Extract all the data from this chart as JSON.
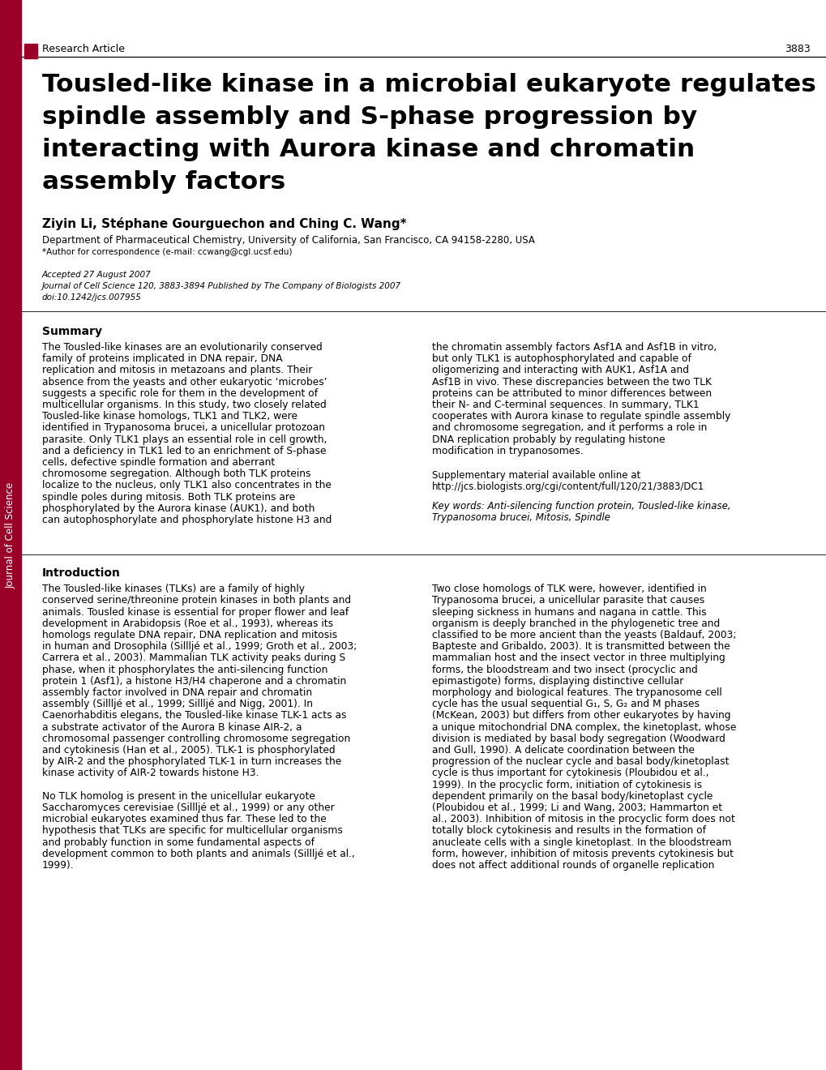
{
  "bg_color": "#ffffff",
  "sidebar_color": "#9b0028",
  "header_label": "Research Article",
  "header_page": "3883",
  "journal_sidebar": "Journal of Cell Science",
  "title_lines": [
    "Tousled-like kinase in a microbial eukaryote regulates",
    "spindle assembly and S-phase progression by",
    "interacting with Aurora kinase and chromatin",
    "assembly factors"
  ],
  "authors": "Ziyin Li, Stéphane Gourguechon and Ching C. Wang*",
  "affiliation": "Department of Pharmaceutical Chemistry, University of California, San Francisco, CA 94158-2280, USA",
  "correspondence": "*Author for correspondence (e-mail: ccwang@cgl.ucsf.edu)",
  "accepted": "Accepted 27 August 2007",
  "journal_ref": "Journal of Cell Science 120, 3883-3894 Published by The Company of Biologists 2007",
  "doi": "doi:10.1242/jcs.007955",
  "summary_title": "Summary",
  "summary_left_lines": [
    "The Tousled-like kinases are an evolutionarily conserved",
    "family of proteins implicated in DNA repair, DNA",
    "replication and mitosis in metazoans and plants. Their",
    "absence from the yeasts and other eukaryotic ‘microbes’",
    "suggests a specific role for them in the development of",
    "multicellular organisms. In this study, two closely related",
    "Tousled-like kinase homologs, TLK1 and TLK2, were",
    "identified in Trypanosoma brucei, a unicellular protozoan",
    "parasite. Only TLK1 plays an essential role in cell growth,",
    "and a deficiency in TLK1 led to an enrichment of S-phase",
    "cells, defective spindle formation and aberrant",
    "chromosome segregation. Although both TLK proteins",
    "localize to the nucleus, only TLK1 also concentrates in the",
    "spindle poles during mitosis. Both TLK proteins are",
    "phosphorylated by the Aurora kinase (AUK1), and both",
    "can autophosphorylate and phosphorylate histone H3 and"
  ],
  "summary_right_lines": [
    "the chromatin assembly factors Asf1A and Asf1B in vitro,",
    "but only TLK1 is autophosphorylated and capable of",
    "oligomerizing and interacting with AUK1, Asf1A and",
    "Asf1B in vivo. These discrepancies between the two TLK",
    "proteins can be attributed to minor differences between",
    "their N- and C-terminal sequences. In summary, TLK1",
    "cooperates with Aurora kinase to regulate spindle assembly",
    "and chromosome segregation, and it performs a role in",
    "DNA replication probably by regulating histone",
    "modification in trypanosomes."
  ],
  "supplementary_line1": "Supplementary material available online at",
  "supplementary_line2": "http://jcs.biologists.org/cgi/content/full/120/21/3883/DC1",
  "keywords_line1": "Key words: Anti-silencing function protein, Tousled-like kinase,",
  "keywords_line2": "Trypanosoma brucei, Mitosis, Spindle",
  "intro_title": "Introduction",
  "intro_left_lines": [
    "The Tousled-like kinases (TLKs) are a family of highly",
    "conserved serine/threonine protein kinases in both plants and",
    "animals. Tousled kinase is essential for proper flower and leaf",
    "development in Arabidopsis (Roe et al., 1993), whereas its",
    "homologs regulate DNA repair, DNA replication and mitosis",
    "in human and Drosophila (Sillljé et al., 1999; Groth et al., 2003;",
    "Carrera et al., 2003). Mammalian TLK activity peaks during S",
    "phase, when it phosphorylates the anti-silencing function",
    "protein 1 (Asf1), a histone H3/H4 chaperone and a chromatin",
    "assembly factor involved in DNA repair and chromatin",
    "assembly (Sillljé et al., 1999; Sillljé and Nigg, 2001). In",
    "Caenorhabditis elegans, the Tousled-like kinase TLK-1 acts as",
    "a substrate activator of the Aurora B kinase AIR-2, a",
    "chromosomal passenger controlling chromosome segregation",
    "and cytokinesis (Han et al., 2005). TLK-1 is phosphorylated",
    "by AIR-2 and the phosphorylated TLK-1 in turn increases the",
    "kinase activity of AIR-2 towards histone H3.",
    "",
    "No TLK homolog is present in the unicellular eukaryote",
    "Saccharomyces cerevisiae (Sillljé et al., 1999) or any other",
    "microbial eukaryotes examined thus far. These led to the",
    "hypothesis that TLKs are specific for multicellular organisms",
    "and probably function in some fundamental aspects of",
    "development common to both plants and animals (Sillljé et al.,",
    "1999)."
  ],
  "intro_right_lines": [
    "Two close homologs of TLK were, however, identified in",
    "Trypanosoma brucei, a unicellular parasite that causes",
    "sleeping sickness in humans and nagana in cattle. This",
    "organism is deeply branched in the phylogenetic tree and",
    "classified to be more ancient than the yeasts (Baldauf, 2003;",
    "Bapteste and Gribaldo, 2003). It is transmitted between the",
    "mammalian host and the insect vector in three multiplying",
    "forms, the bloodstream and two insect (procyclic and",
    "epimastigote) forms, displaying distinctive cellular",
    "morphology and biological features. The trypanosome cell",
    "cycle has the usual sequential G₁, S, G₂ and M phases",
    "(McKean, 2003) but differs from other eukaryotes by having",
    "a unique mitochondrial DNA complex, the kinetoplast, whose",
    "division is mediated by basal body segregation (Woodward",
    "and Gull, 1990). A delicate coordination between the",
    "progression of the nuclear cycle and basal body/kinetoplast",
    "cycle is thus important for cytokinesis (Ploubidou et al.,",
    "1999). In the procyclic form, initiation of cytokinesis is",
    "dependent primarily on the basal body/kinetoplast cycle",
    "(Ploubidou et al., 1999; Li and Wang, 2003; Hammarton et",
    "al., 2003). Inhibition of mitosis in the procyclic form does not",
    "totally block cytokinesis and results in the formation of",
    "anucleate cells with a single kinetoplast. In the bloodstream",
    "form, however, inhibition of mitosis prevents cytokinesis but",
    "does not affect additional rounds of organelle replication"
  ]
}
